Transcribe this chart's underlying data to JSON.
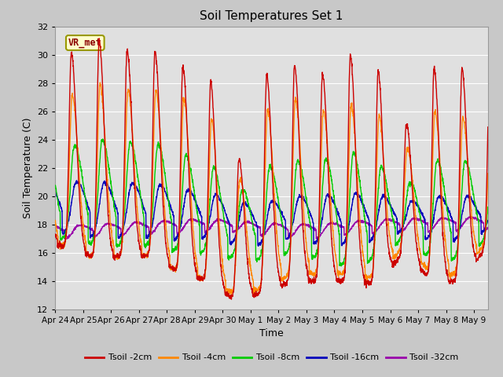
{
  "title": "Soil Temperatures Set 1",
  "xlabel": "Time",
  "ylabel": "Soil Temperature (C)",
  "ylim": [
    12,
    32
  ],
  "yticks": [
    12,
    14,
    16,
    18,
    20,
    22,
    24,
    26,
    28,
    30,
    32
  ],
  "xlim": [
    0,
    15.5
  ],
  "fig_facecolor": "#c8c8c8",
  "plot_bg_color": "#e0e0e0",
  "series_colors": [
    "#cc0000",
    "#ff8800",
    "#00cc00",
    "#0000bb",
    "#9900aa"
  ],
  "series_labels": [
    "Tsoil -2cm",
    "Tsoil -4cm",
    "Tsoil -8cm",
    "Tsoil -16cm",
    "Tsoil -32cm"
  ],
  "x_tick_labels": [
    "Apr 24",
    "Apr 25",
    "Apr 26",
    "Apr 27",
    "Apr 28",
    "Apr 29",
    "Apr 30",
    "May 1",
    "May 2",
    "May 3",
    "May 4",
    "May 5",
    "May 6",
    "May 7",
    "May 8",
    "May 9"
  ],
  "x_tick_positions": [
    0,
    1,
    2,
    3,
    4,
    5,
    6,
    7,
    8,
    9,
    10,
    11,
    12,
    13,
    14,
    15
  ],
  "annotation_text": "VR_met",
  "annotation_color": "#8b0000",
  "annotation_bgcolor": "#ffffcc",
  "annotation_edgecolor": "#999900"
}
